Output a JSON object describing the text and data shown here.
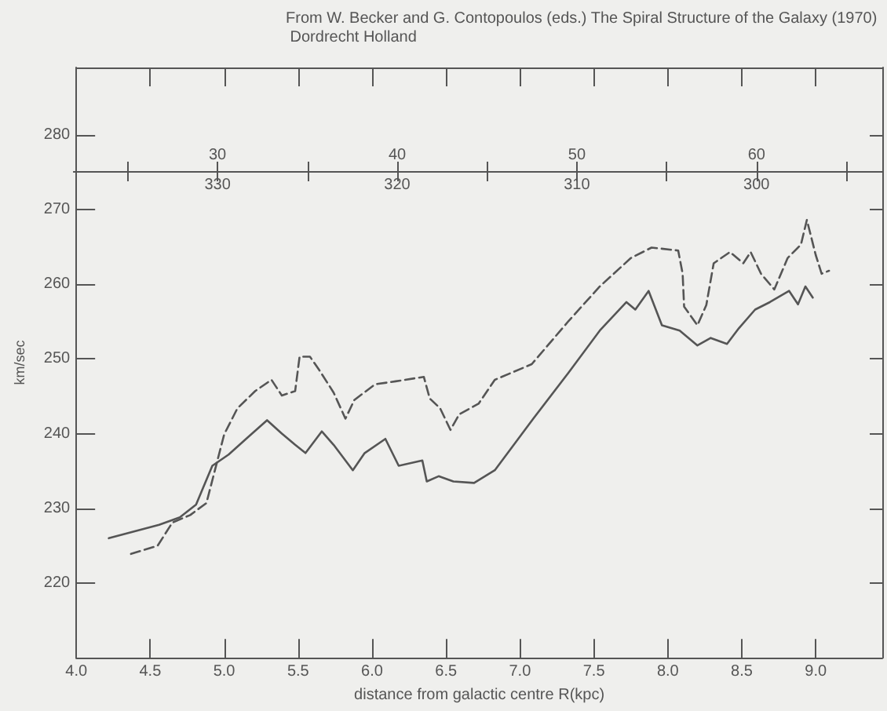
{
  "chart_data": {
    "type": "line",
    "annotations": [
      "From W. Becker and G. Contopoulos (eds.) The Spiral Structure of the Galaxy (1970) Dordrecht Holland",
      "330",
      "320",
      "310",
      "300"
    ],
    "xlabel": "distance from galactic centre R(kpc)",
    "ylabel": "km/sec",
    "xlim": [
      4.0,
      9.45
    ],
    "xticks": [
      {
        "value": 4.0,
        "label": "4.0"
      },
      {
        "value": 4.5,
        "label": "4.5"
      },
      {
        "value": 5.0,
        "label": "5.0"
      },
      {
        "value": 5.5,
        "label": "5.5"
      },
      {
        "value": 6.0,
        "label": "6.0"
      },
      {
        "value": 6.5,
        "label": "6.5"
      },
      {
        "value": 7.0,
        "label": "7.0"
      },
      {
        "value": 7.5,
        "label": "7.5"
      },
      {
        "value": 8.0,
        "label": "8.0"
      },
      {
        "value": 8.5,
        "label": "8.5"
      },
      {
        "value": 9.0,
        "label": "9.0"
      }
    ],
    "ylim": [
      210,
      289
    ],
    "yticks": [
      220,
      230,
      240,
      250,
      260,
      270,
      280
    ],
    "x2lim": [
      22,
      67
    ],
    "x2ticks": [
      30,
      40,
      50,
      60
    ],
    "grid": false,
    "marker": "none",
    "series": [
      {
        "color": "#555555",
        "line_style": "dashed",
        "x": [
          4.37,
          4.55,
          4.65,
          4.77,
          4.88,
          5.0,
          5.09,
          5.21,
          5.32,
          5.39,
          5.48,
          5.51,
          5.58,
          5.64,
          5.74,
          5.82,
          5.88,
          6.02,
          6.16,
          6.35,
          6.39,
          6.46,
          6.53,
          6.59,
          6.72,
          6.83,
          7.08,
          7.33,
          7.54,
          7.75,
          7.89,
          8.07,
          8.1,
          8.11,
          8.2,
          8.26,
          8.31,
          8.42,
          8.51,
          8.56,
          8.63,
          8.72,
          8.81,
          8.9,
          8.94,
          9.0,
          9.04,
          9.09
        ],
        "values": [
          223.9,
          225,
          228.1,
          229.1,
          230.7,
          239.9,
          243.4,
          245.7,
          247.2,
          245.1,
          245.7,
          250.3,
          250.3,
          248.6,
          245.5,
          242,
          244.5,
          246.6,
          247,
          247.6,
          244.7,
          243.4,
          240.5,
          242.6,
          244,
          247.2,
          249.3,
          255.1,
          259.7,
          263.5,
          264.9,
          264.5,
          261.4,
          257,
          254.5,
          257.2,
          262.8,
          264.3,
          262.8,
          264.3,
          261.4,
          259.3,
          263.5,
          265.3,
          268.6,
          263.9,
          261.4,
          261.8
        ]
      },
      {
        "color": "#555555",
        "line_style": "solid",
        "x": [
          4.22,
          4.37,
          4.56,
          4.7,
          4.81,
          4.92,
          5.03,
          5.16,
          5.29,
          5.39,
          5.48,
          5.55,
          5.66,
          5.74,
          5.87,
          5.95,
          6.09,
          6.18,
          6.34,
          6.37,
          6.45,
          6.55,
          6.69,
          6.83,
          7.09,
          7.33,
          7.54,
          7.72,
          7.78,
          7.87,
          7.96,
          8.08,
          8.2,
          8.29,
          8.4,
          8.48,
          8.59,
          8.69,
          8.82,
          8.88,
          8.93,
          8.98
        ],
        "values": [
          226,
          226.8,
          227.8,
          228.8,
          230.5,
          235.7,
          237.2,
          239.5,
          241.8,
          240,
          238.5,
          237.4,
          240.3,
          238.5,
          235.1,
          237.4,
          239.3,
          235.7,
          236.4,
          233.6,
          234.3,
          233.6,
          233.4,
          235.1,
          242,
          248.2,
          253.8,
          257.6,
          256.6,
          259.1,
          254.5,
          253.8,
          251.8,
          252.8,
          252,
          254.1,
          256.6,
          257.6,
          259.1,
          257.3,
          259.7,
          258.2
        ]
      }
    ]
  }
}
